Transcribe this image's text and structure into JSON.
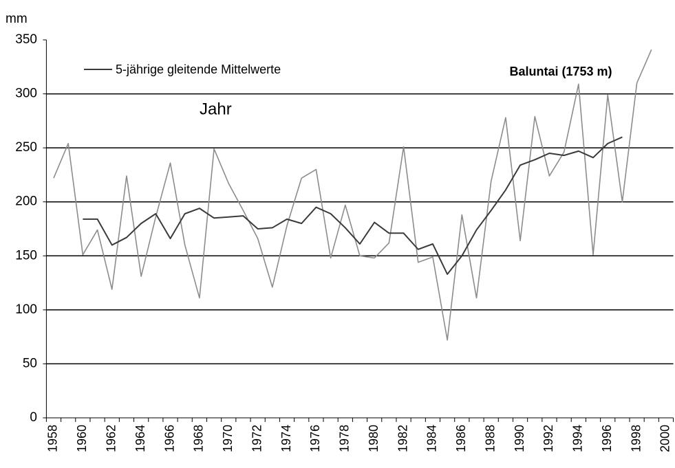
{
  "chart_data": {
    "type": "line",
    "title": "Baluntai (1753 m)",
    "y_label": "mm",
    "categories": [
      "1958",
      null,
      "1960",
      null,
      "1962",
      null,
      "1964",
      null,
      "1966",
      null,
      "1968",
      null,
      "1970",
      null,
      "1972",
      null,
      "1974",
      null,
      "1976",
      null,
      "1978",
      null,
      "1980",
      null,
      "1982",
      null,
      "1984",
      null,
      "1986",
      null,
      "1988",
      null,
      "1990",
      null,
      "1992",
      null,
      "1994",
      null,
      "1996",
      null,
      "1998",
      null,
      "2000"
    ],
    "series": [
      {
        "name": "Jahr",
        "color": "#8c8c8c",
        "values": [
          222,
          254,
          151,
          174,
          119,
          224,
          131,
          186,
          236,
          160,
          111,
          249,
          217,
          192,
          166,
          121,
          178,
          222,
          230,
          148,
          197,
          150,
          148,
          162,
          251,
          144,
          149,
          72,
          188,
          111,
          219,
          278,
          164,
          279,
          224,
          246,
          309,
          151,
          299,
          200,
          310,
          341,
          null
        ]
      },
      {
        "name": "5-jährige gleitende Mittelwerte",
        "color": "#3a3a3a",
        "values": [
          null,
          null,
          184,
          184,
          160,
          167,
          180,
          189,
          166,
          189,
          194,
          185,
          186,
          187,
          175,
          176,
          184,
          180,
          195,
          189,
          176,
          161,
          181,
          171,
          171,
          156,
          161,
          133,
          150,
          174,
          192,
          211,
          234,
          239,
          245,
          243,
          247,
          241,
          254,
          260,
          null,
          null,
          null
        ]
      }
    ],
    "ylim": [
      0,
      350
    ],
    "yticks": [
      0,
      50,
      100,
      150,
      200,
      250,
      300,
      350
    ],
    "grid": true
  }
}
